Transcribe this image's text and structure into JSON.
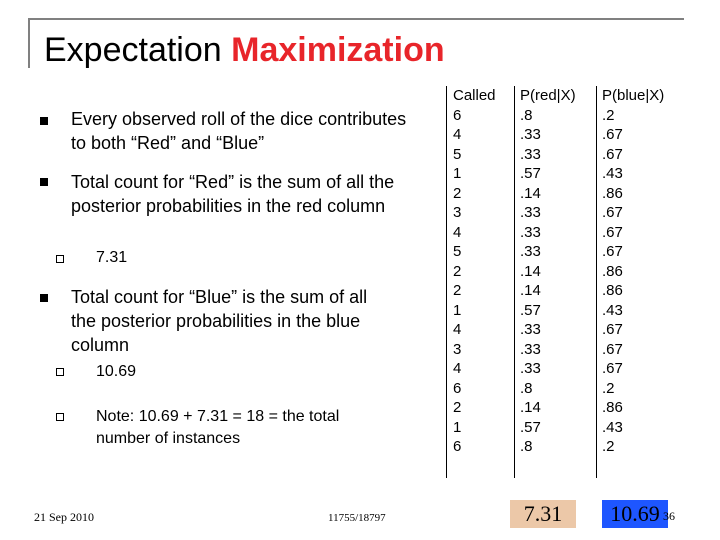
{
  "slide": {
    "title_plain": "Expectation ",
    "title_accent": "Maximization",
    "bullets": [
      {
        "text": "Every observed roll of the dice contributes to both “Red” and “Blue”"
      },
      {
        "text": "Total count for “Red” is the sum of all the posterior probabilities in the red column"
      },
      {
        "text": "7.31"
      },
      {
        "text": "Total count for “Blue” is the sum of all the posterior probabilities in the blue column"
      },
      {
        "text": "10.69"
      },
      {
        "text": "Note: 10.69 + 7.31 = 18 = the total number of instances"
      }
    ],
    "table": {
      "headers": [
        "Called",
        "P(red|X)",
        "P(blue|X)"
      ],
      "called": [
        "6",
        "4",
        "5",
        "1",
        "2",
        "3",
        "4",
        "5",
        "2",
        "2",
        "1",
        "4",
        "3",
        "4",
        "6",
        "2",
        "1",
        "6"
      ],
      "p_red": [
        ".8",
        ".33",
        ".33",
        ".57",
        ".14",
        ".33",
        ".33",
        ".33",
        ".14",
        ".14",
        ".57",
        ".33",
        ".33",
        ".33",
        ".8",
        ".14",
        ".57",
        ".8"
      ],
      "p_blue": [
        ".2",
        ".67",
        ".67",
        ".43",
        ".86",
        ".67",
        ".67",
        ".67",
        ".86",
        ".86",
        ".43",
        ".67",
        ".67",
        ".67",
        ".2",
        ".86",
        ".43",
        ".2"
      ]
    },
    "totals": {
      "red": "7.31",
      "blue": "10.69"
    },
    "footer": {
      "date": "21 Sep 2010",
      "course": "11755/18797",
      "page": "36"
    },
    "colors": {
      "accent": "#e8252a",
      "red_total_bg": "#ecc8a8",
      "blue_total_bg": "#1e56ff"
    }
  }
}
